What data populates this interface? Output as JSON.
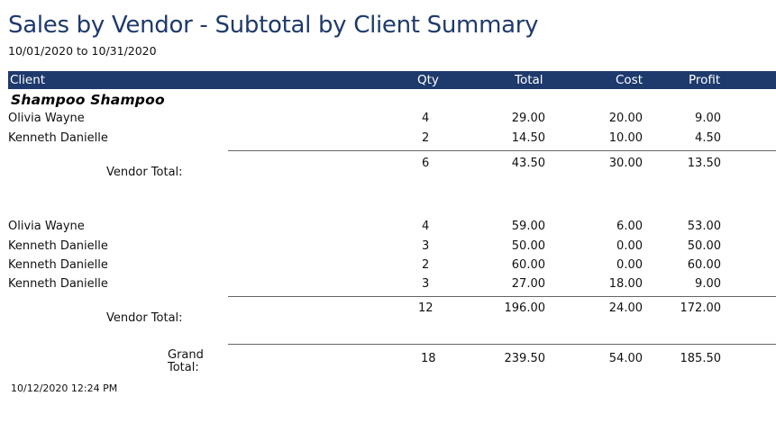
{
  "report": {
    "title": "Sales by Vendor - Subtotal by Client Summary",
    "date_range": "10/01/2020 to 10/31/2020",
    "columns": {
      "client": "Client",
      "qty": "Qty",
      "total": "Total",
      "cost": "Cost",
      "profit": "Profit"
    },
    "colors": {
      "title": "#1f3a6b",
      "header_bg": "#1e3a6d",
      "header_text": "#ffffff"
    }
  },
  "groups": [
    {
      "vendor": "Shampoo Shampoo",
      "rows": [
        {
          "client": "Olivia Wayne",
          "qty": "4",
          "total": "29.00",
          "cost": "20.00",
          "profit": "9.00"
        },
        {
          "client": "Kenneth Danielle",
          "qty": "2",
          "total": "14.50",
          "cost": "10.00",
          "profit": "4.50"
        }
      ],
      "subtotal": {
        "label": "Vendor Total:",
        "qty": "6",
        "total": "43.50",
        "cost": "30.00",
        "profit": "13.50"
      }
    },
    {
      "vendor": "",
      "rows": [
        {
          "client": "Olivia Wayne",
          "qty": "4",
          "total": "59.00",
          "cost": "6.00",
          "profit": "53.00"
        },
        {
          "client": "Kenneth Danielle",
          "qty": "3",
          "total": "50.00",
          "cost": "0.00",
          "profit": "50.00"
        },
        {
          "client": "Kenneth Danielle",
          "qty": "2",
          "total": "60.00",
          "cost": "0.00",
          "profit": "60.00"
        },
        {
          "client": "Kenneth Danielle",
          "qty": "3",
          "total": "27.00",
          "cost": "18.00",
          "profit": "9.00"
        }
      ],
      "subtotal": {
        "label": "Vendor Total:",
        "qty": "12",
        "total": "196.00",
        "cost": "24.00",
        "profit": "172.00"
      }
    }
  ],
  "grand_total": {
    "label_line1": "Grand",
    "label_line2": "Total:",
    "qty": "18",
    "total": "239.50",
    "cost": "54.00",
    "profit": "185.50"
  },
  "footer": {
    "printed": "10/12/2020 12:24 PM"
  }
}
